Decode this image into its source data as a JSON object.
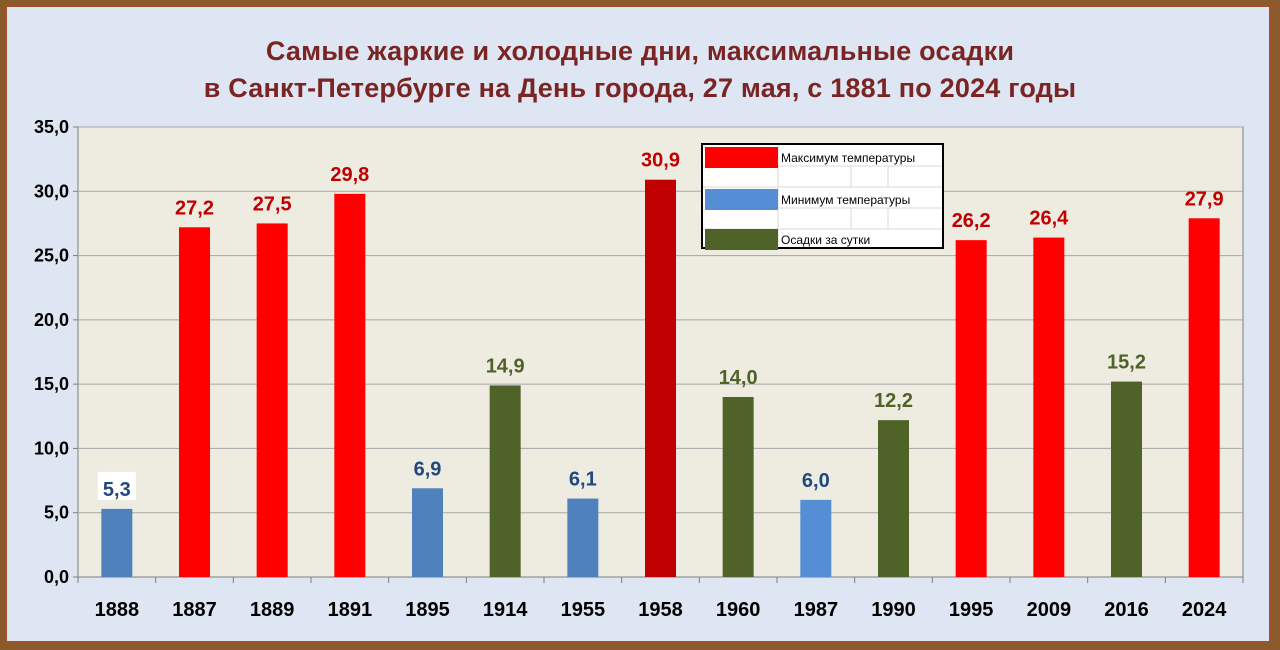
{
  "chart_title": {
    "line1": "Самые жаркие и холодные дни, максимальные осадки",
    "line2": "в Санкт-Петербурге на День города, 27 мая, с 1881 по 2024 годы"
  },
  "colors": {
    "max_temp": "#ff0000",
    "max_temp_record": "#c00000",
    "min_temp": "#4f81bd",
    "min_temp_light": "#558ed5",
    "precip": "#4f6228",
    "label_red": "#c00000",
    "label_blue": "#1f497d",
    "label_green": "#4f6228",
    "plot_bg": "#eeece1"
  },
  "legend": {
    "items": [
      {
        "label": "Максимум температуры",
        "color": "#ff0000"
      },
      {
        "label": "Минимум температуры",
        "color": "#558ed5"
      },
      {
        "label": "Осадки за сутки",
        "color": "#4f6228"
      }
    ]
  },
  "chart_data": {
    "type": "bar",
    "title": "Самые жаркие и холодные дни, максимальные осадки в Санкт-Петербурге на День города, 27 мая, с 1881 по 2024 годы",
    "xlabel": "",
    "ylabel": "",
    "ylim": [
      0,
      35
    ],
    "yticks": [
      "0,0",
      "5,0",
      "10,0",
      "15,0",
      "20,0",
      "25,0",
      "30,0",
      "35,0"
    ],
    "grid": true,
    "legend_position": "top-center",
    "categories": [
      "1888",
      "1887",
      "1889",
      "1891",
      "1895",
      "1914",
      "1955",
      "1958",
      "1960",
      "1987",
      "1990",
      "1995",
      "2009",
      "2016",
      "2024"
    ],
    "values": [
      5.3,
      27.2,
      27.5,
      29.8,
      6.9,
      14.9,
      6.1,
      30.9,
      14.0,
      6.0,
      12.2,
      26.2,
      26.4,
      15.2,
      27.9
    ],
    "value_labels": [
      "5,3",
      "27,2",
      "27,5",
      "29,8",
      "6,9",
      "14,9",
      "6,1",
      "30,9",
      "14,0",
      "6,0",
      "12,2",
      "26,2",
      "26,4",
      "15,2",
      "27,9"
    ],
    "bar_series": [
      "min",
      "max",
      "max",
      "max",
      "min",
      "precip",
      "min",
      "max_record",
      "precip",
      "min_light",
      "precip",
      "max",
      "max",
      "precip",
      "max"
    ]
  }
}
